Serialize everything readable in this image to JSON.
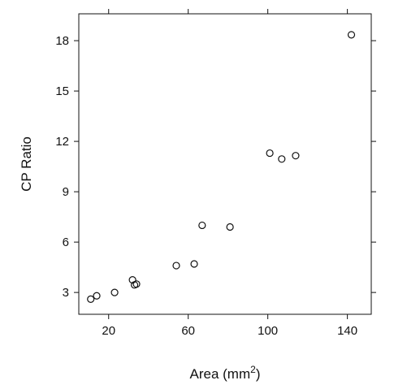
{
  "chart_data": {
    "type": "scatter",
    "xlabel": "Area (mm",
    "xlabel_superscript": "2",
    "xlabel_suffix": ")",
    "ylabel": "CP Ratio",
    "xlim": [
      5,
      152
    ],
    "ylim": [
      1.7,
      19.6
    ],
    "x_ticks": [
      20,
      60,
      100,
      140
    ],
    "y_ticks": [
      3,
      6,
      9,
      12,
      15,
      18
    ],
    "grid": false,
    "marker": "open-circle",
    "color": "#111111",
    "points": [
      {
        "x": 11,
        "y": 2.6
      },
      {
        "x": 14,
        "y": 2.8
      },
      {
        "x": 23,
        "y": 3.0
      },
      {
        "x": 32,
        "y": 3.75
      },
      {
        "x": 33,
        "y": 3.45
      },
      {
        "x": 34,
        "y": 3.5
      },
      {
        "x": 54,
        "y": 4.6
      },
      {
        "x": 63,
        "y": 4.7
      },
      {
        "x": 67,
        "y": 7.0
      },
      {
        "x": 81,
        "y": 6.9
      },
      {
        "x": 101,
        "y": 11.3
      },
      {
        "x": 107,
        "y": 10.95
      },
      {
        "x": 114,
        "y": 11.15
      },
      {
        "x": 142,
        "y": 18.35
      }
    ]
  }
}
